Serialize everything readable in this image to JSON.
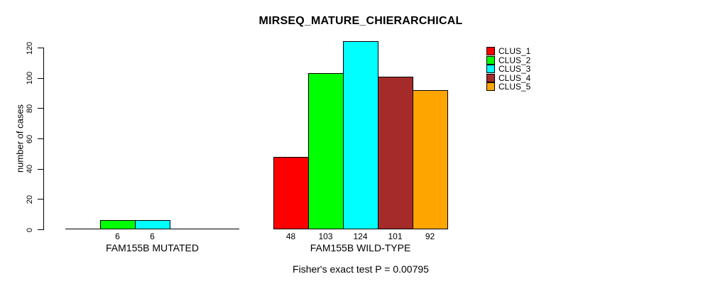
{
  "chart_data": {
    "type": "bar",
    "title": "MIRSEQ_MATURE_CHIERARCHICAL",
    "ylabel": "number of cases",
    "xlabel": "",
    "yticks": [
      0,
      20,
      40,
      60,
      80,
      100,
      120
    ],
    "ylim": [
      0,
      130
    ],
    "grid": false,
    "legend_position": "right",
    "series": [
      {
        "name": "CLUS_1",
        "color": "#FF0000"
      },
      {
        "name": "CLUS_2",
        "color": "#00FF00"
      },
      {
        "name": "CLUS_3",
        "color": "#00FFFF"
      },
      {
        "name": "CLUS_4",
        "color": "#A52A2A"
      },
      {
        "name": "CLUS_5",
        "color": "#FFA500"
      }
    ],
    "groups": [
      {
        "label": "FAM155B MUTATED",
        "values": [
          0,
          6,
          6,
          0,
          0
        ],
        "bar_labels": [
          "",
          "6",
          "6",
          "",
          ""
        ]
      },
      {
        "label": "FAM155B WILD-TYPE",
        "values": [
          48,
          103,
          124,
          101,
          92
        ],
        "bar_labels": [
          "48",
          "103",
          "124",
          "101",
          "92"
        ]
      }
    ],
    "annotation": "Fisher's exact test P = 0.00795"
  },
  "colors": {
    "background": "#FFFFFF",
    "axis": "#000000",
    "text": "#000000"
  }
}
